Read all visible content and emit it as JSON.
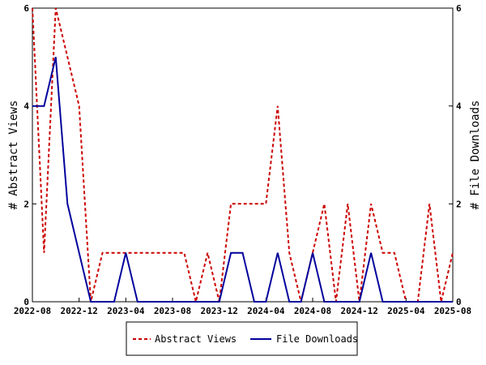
{
  "chart_data": {
    "type": "line",
    "ylabel_left": "# Abstract Views",
    "ylabel_right": "# File Downloads",
    "x_tick_labels": [
      "2022-08",
      "2022-12",
      "2023-04",
      "2023-08",
      "2023-12",
      "2024-04",
      "2024-08",
      "2024-12",
      "2025-04",
      "2025-08"
    ],
    "y_left_ticks": [
      "0",
      "2",
      "4",
      "6"
    ],
    "y_right_ticks": [
      "0",
      "2",
      "4",
      "6"
    ],
    "ylim_left": [
      0,
      6
    ],
    "ylim_right": [
      0,
      6
    ],
    "x_range": [
      "2022-08",
      "2025-08"
    ],
    "legend_position": "bottom-center",
    "series": [
      {
        "name": "Abstract Views",
        "axis": "left",
        "color": "#cc0000",
        "style": "dashed",
        "points": [
          [
            "2022-08",
            6
          ],
          [
            "2022-09",
            1
          ],
          [
            "2022-10",
            6
          ],
          [
            "2022-11",
            5
          ],
          [
            "2022-12",
            4
          ],
          [
            "2023-01",
            0
          ],
          [
            "2023-02",
            1
          ],
          [
            "2023-03",
            1
          ],
          [
            "2023-04",
            1
          ],
          [
            "2023-05",
            1
          ],
          [
            "2023-06",
            1
          ],
          [
            "2023-07",
            1
          ],
          [
            "2023-08",
            1
          ],
          [
            "2023-09",
            1
          ],
          [
            "2023-10",
            0
          ],
          [
            "2023-11",
            1
          ],
          [
            "2023-12",
            0
          ],
          [
            "2024-01",
            2
          ],
          [
            "2024-02",
            2
          ],
          [
            "2024-03",
            2
          ],
          [
            "2024-04",
            2
          ],
          [
            "2024-05",
            4
          ],
          [
            "2024-06",
            1
          ],
          [
            "2024-07",
            0
          ],
          [
            "2024-08",
            1
          ],
          [
            "2024-09",
            2
          ],
          [
            "2024-10",
            0
          ],
          [
            "2024-11",
            2
          ],
          [
            "2024-12",
            0
          ],
          [
            "2025-01",
            2
          ],
          [
            "2025-02",
            1
          ],
          [
            "2025-03",
            1
          ],
          [
            "2025-04",
            0
          ],
          [
            "2025-05",
            0
          ],
          [
            "2025-06",
            2
          ],
          [
            "2025-07",
            0
          ],
          [
            "2025-08",
            1
          ]
        ]
      },
      {
        "name": "File Downloads",
        "axis": "right",
        "color": "#00009c",
        "style": "solid",
        "points": [
          [
            "2022-08",
            4
          ],
          [
            "2022-09",
            4
          ],
          [
            "2022-10",
            5
          ],
          [
            "2022-11",
            2
          ],
          [
            "2022-12",
            1
          ],
          [
            "2023-01",
            0
          ],
          [
            "2023-02",
            0
          ],
          [
            "2023-03",
            0
          ],
          [
            "2023-04",
            1
          ],
          [
            "2023-05",
            0
          ],
          [
            "2023-06",
            0
          ],
          [
            "2023-07",
            0
          ],
          [
            "2023-08",
            0
          ],
          [
            "2023-09",
            0
          ],
          [
            "2023-10",
            0
          ],
          [
            "2023-11",
            0
          ],
          [
            "2023-12",
            0
          ],
          [
            "2024-01",
            1
          ],
          [
            "2024-02",
            1
          ],
          [
            "2024-03",
            0
          ],
          [
            "2024-04",
            0
          ],
          [
            "2024-05",
            1
          ],
          [
            "2024-06",
            0
          ],
          [
            "2024-07",
            0
          ],
          [
            "2024-08",
            1
          ],
          [
            "2024-09",
            0
          ],
          [
            "2024-10",
            0
          ],
          [
            "2024-11",
            0
          ],
          [
            "2024-12",
            0
          ],
          [
            "2025-01",
            1
          ],
          [
            "2025-02",
            0
          ],
          [
            "2025-03",
            0
          ],
          [
            "2025-04",
            0
          ],
          [
            "2025-05",
            0
          ],
          [
            "2025-06",
            0
          ],
          [
            "2025-07",
            0
          ],
          [
            "2025-08",
            0
          ]
        ]
      }
    ]
  }
}
